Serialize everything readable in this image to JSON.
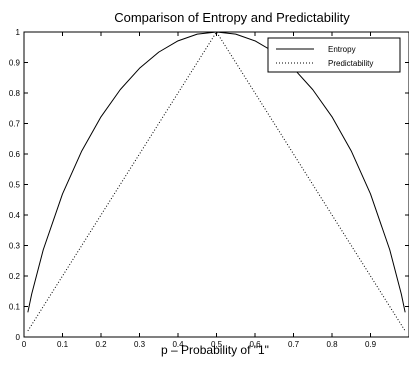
{
  "chart_data": {
    "type": "line",
    "title": "Comparison of Entropy and Predictability",
    "xlabel": "p – Probability of \"1\"",
    "ylabel": "",
    "xlim": [
      0,
      1
    ],
    "ylim": [
      0,
      1
    ],
    "xticks": [
      "0",
      "0.1",
      "0.2",
      "0.3",
      "0.4",
      "0.5",
      "0.6",
      "0.7",
      "0.8",
      "0.9"
    ],
    "yticks": [
      "0",
      "0.1",
      "0.2",
      "0.3",
      "0.4",
      "0.5",
      "0.6",
      "0.7",
      "0.8",
      "0.9",
      "1"
    ],
    "grid": false,
    "legend": "top-right",
    "x": [
      0.01,
      0.02,
      0.05,
      0.1,
      0.15,
      0.2,
      0.25,
      0.3,
      0.35,
      0.4,
      0.45,
      0.5,
      0.55,
      0.6,
      0.65,
      0.7,
      0.75,
      0.8,
      0.85,
      0.9,
      0.95,
      0.98,
      0.99
    ],
    "series": [
      {
        "name": "Entropy",
        "style": "solid",
        "values": [
          0.081,
          0.141,
          0.286,
          0.469,
          0.61,
          0.722,
          0.811,
          0.881,
          0.934,
          0.971,
          0.993,
          1.0,
          0.993,
          0.971,
          0.934,
          0.881,
          0.811,
          0.722,
          0.61,
          0.469,
          0.286,
          0.141,
          0.081
        ]
      },
      {
        "name": "Predictability",
        "style": "dotted",
        "values": [
          0.02,
          0.04,
          0.1,
          0.2,
          0.3,
          0.4,
          0.5,
          0.6,
          0.7,
          0.8,
          0.9,
          1.0,
          0.9,
          0.8,
          0.7,
          0.6,
          0.5,
          0.4,
          0.3,
          0.2,
          0.1,
          0.04,
          0.02
        ]
      }
    ]
  }
}
